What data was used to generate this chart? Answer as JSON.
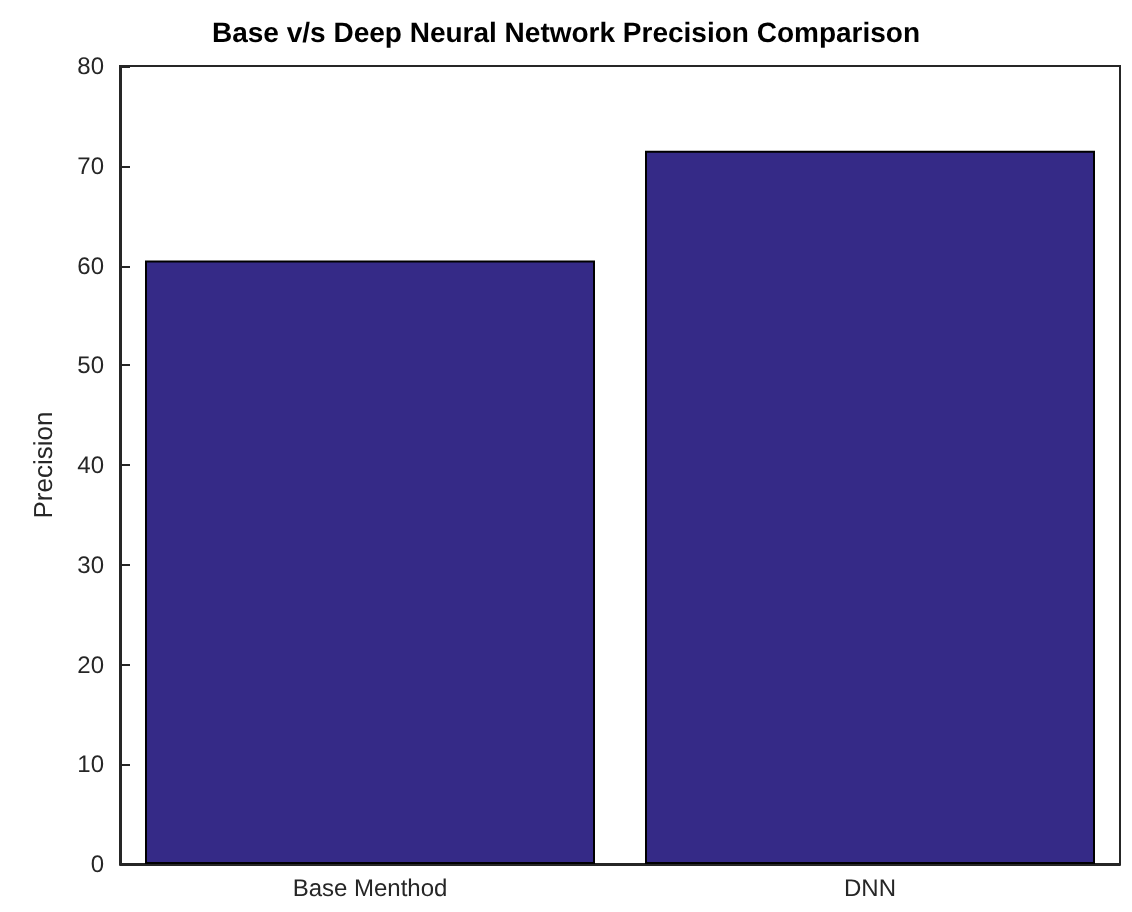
{
  "chart_data": {
    "type": "bar",
    "title": "Base v/s Deep Neural Network Precision Comparison",
    "ylabel": "Precision",
    "categories": [
      "Base Menthod",
      "DNN"
    ],
    "values": [
      60.5,
      71.5
    ],
    "color": "#352a87",
    "ylim": [
      0,
      80
    ],
    "yticks": [
      0,
      10,
      20,
      30,
      40,
      50,
      60,
      70,
      80
    ],
    "grid": false
  }
}
